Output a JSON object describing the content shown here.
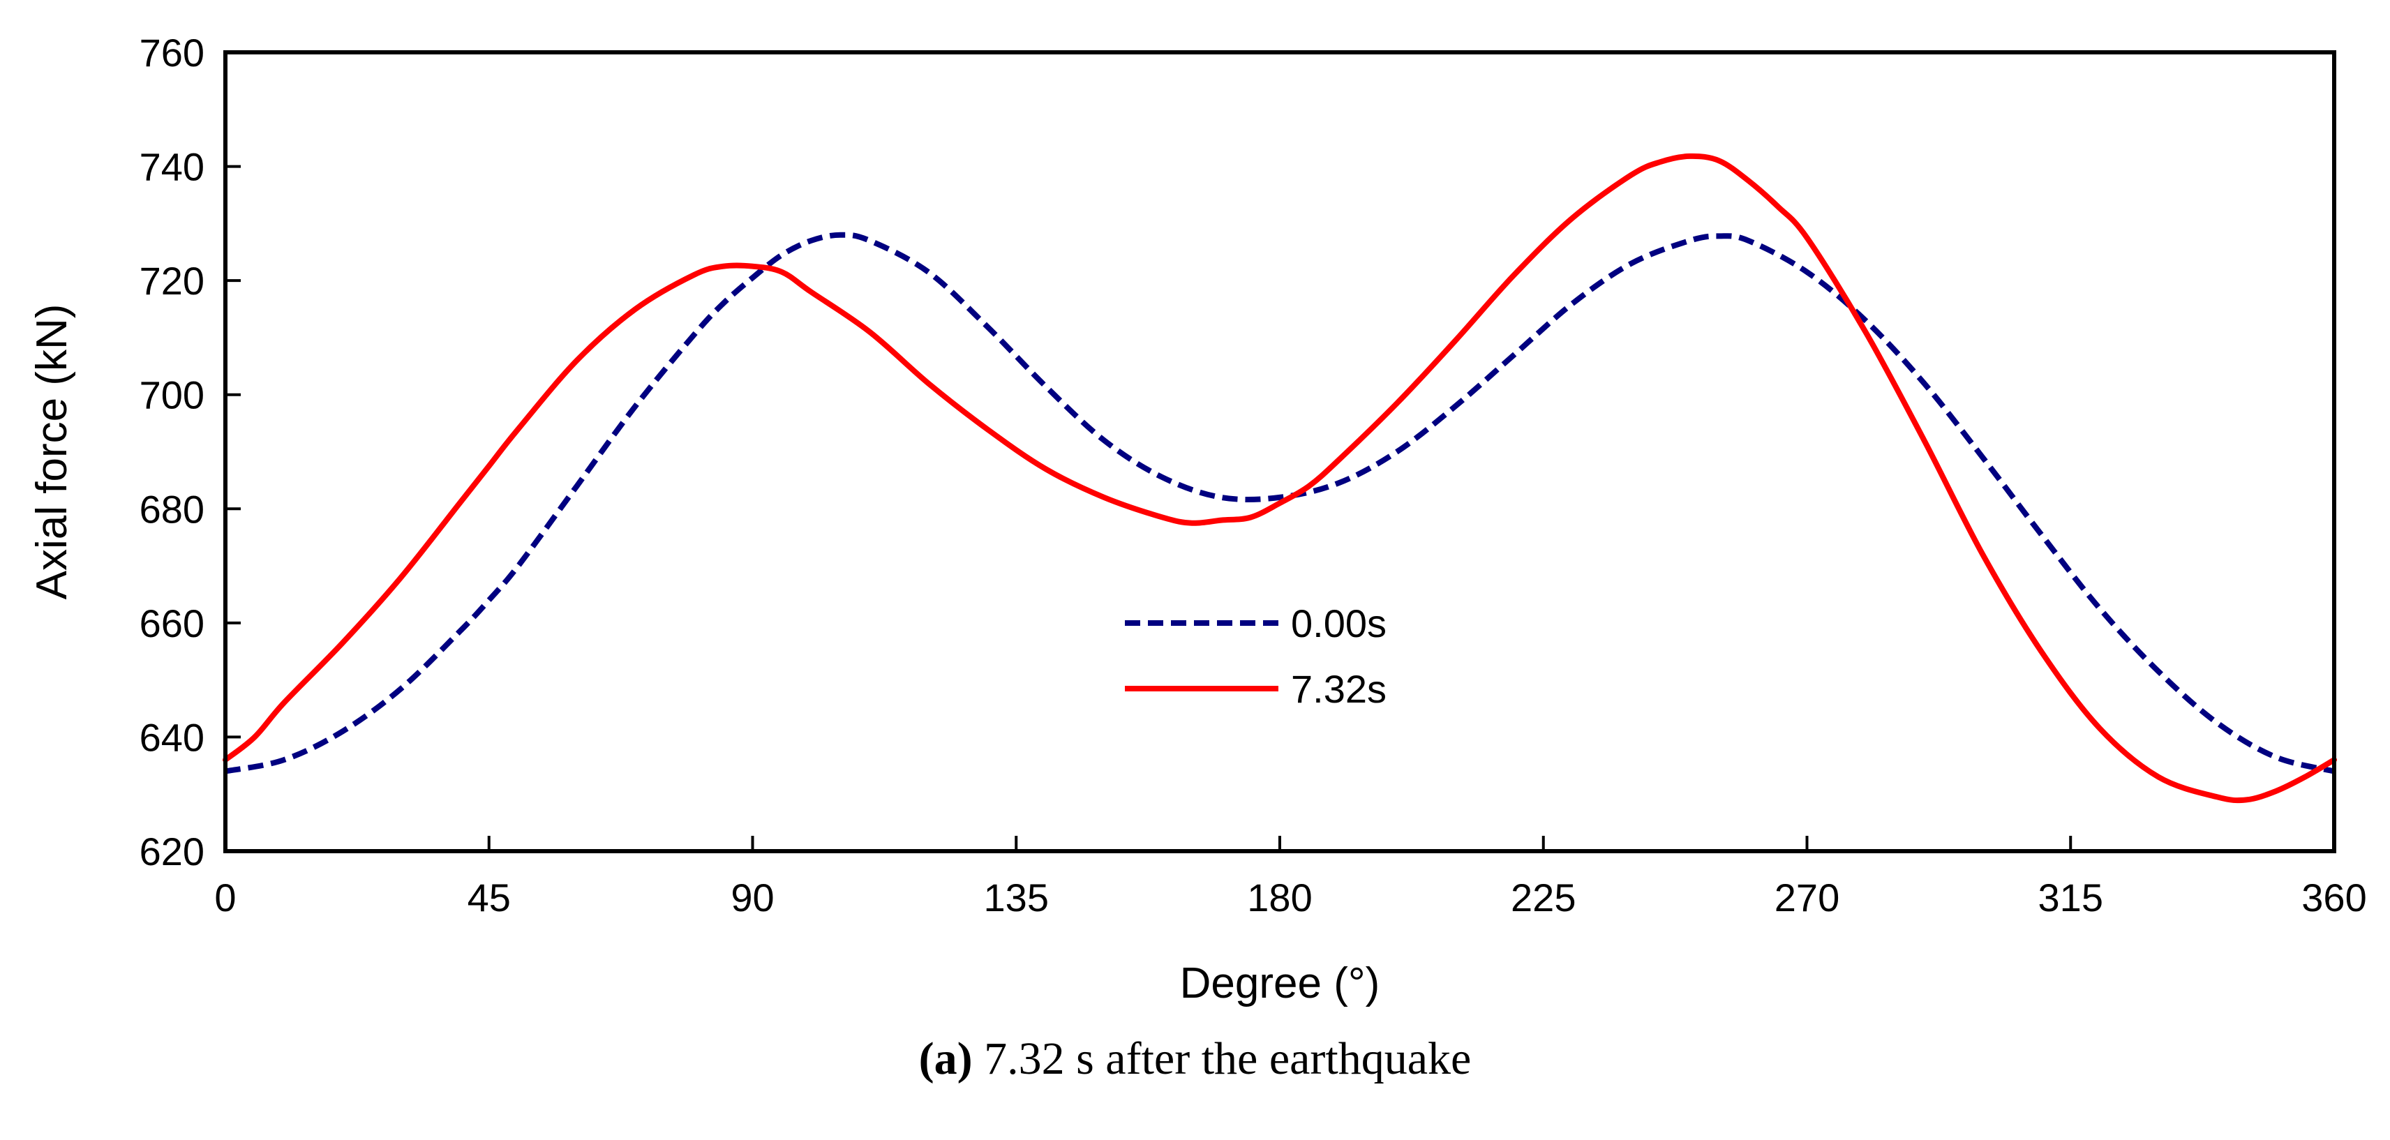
{
  "chart_data": {
    "type": "line",
    "xlabel": "Degree  (°)",
    "ylabel": "Axial force (kN)",
    "xlim": [
      0,
      360
    ],
    "ylim": [
      620,
      760
    ],
    "xticks": [
      0,
      45,
      90,
      135,
      180,
      225,
      270,
      315,
      360
    ],
    "yticks": [
      620,
      640,
      660,
      680,
      700,
      720,
      740,
      760
    ],
    "grid": false,
    "legend_position": "center",
    "series": [
      {
        "name": "0.00s",
        "style": "dashed",
        "color": "#000080",
        "x": [
          0,
          10,
          20,
          30,
          40,
          45,
          50,
          60,
          70,
          80,
          85,
          90,
          95,
          100,
          105,
          110,
          120,
          130,
          140,
          150,
          160,
          170,
          180,
          190,
          200,
          210,
          220,
          230,
          240,
          250,
          255,
          260,
          270,
          280,
          290,
          300,
          310,
          320,
          330,
          340,
          350,
          360
        ],
        "y": [
          634,
          636,
          641,
          648.5,
          658.5,
          664,
          670,
          684,
          698,
          710.5,
          716,
          720.5,
          724.5,
          727,
          728,
          727,
          721.5,
          712,
          701.5,
          692,
          685.5,
          682,
          682,
          684.5,
          690,
          698,
          707,
          716,
          723,
          727,
          727.8,
          727,
          721.5,
          713,
          702,
          689,
          675.5,
          662.5,
          651.5,
          642.5,
          636.5,
          634
        ]
      },
      {
        "name": "7.32s",
        "style": "solid",
        "color": "#ff0000",
        "x": [
          0,
          5,
          10,
          20,
          30,
          40,
          45,
          50,
          60,
          70,
          80,
          85,
          90,
          95,
          100,
          110,
          120,
          130,
          140,
          150,
          160,
          165,
          170,
          175,
          180,
          185,
          190,
          200,
          210,
          220,
          230,
          240,
          245,
          250,
          255,
          260,
          265,
          270,
          280,
          290,
          300,
          310,
          320,
          330,
          340,
          345,
          350,
          355,
          360
        ],
        "y": [
          636,
          640,
          646,
          656.5,
          668,
          681,
          687.5,
          694,
          706,
          715,
          721,
          722.5,
          722.5,
          721.5,
          718,
          711,
          702,
          694,
          687,
          682,
          678.5,
          677.5,
          678,
          678.5,
          681,
          684,
          688.5,
          698.5,
          709.5,
          721,
          731,
          738.5,
          740.8,
          741.8,
          741,
          737.5,
          733,
          727.5,
          711,
          692,
          672,
          655,
          641.5,
          633,
          629.5,
          629,
          630.5,
          633,
          636
        ]
      }
    ]
  },
  "caption": {
    "label": "(a)",
    "text": " 7.32 s after the earthquake"
  }
}
